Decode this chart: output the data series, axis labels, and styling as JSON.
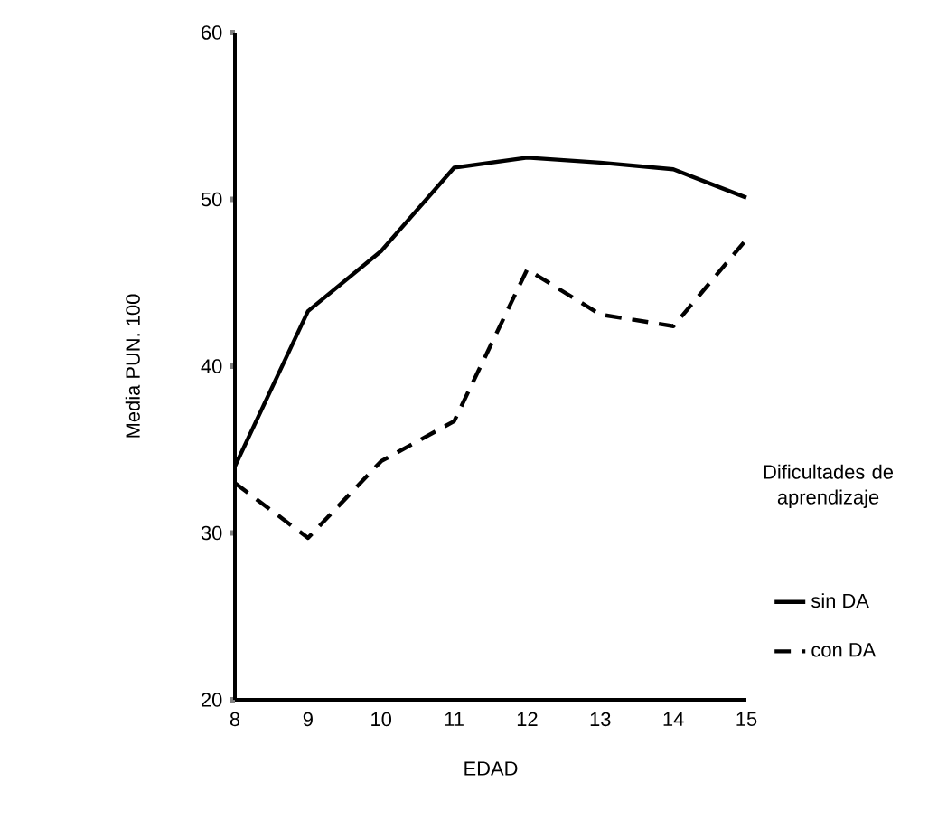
{
  "chart_data": {
    "type": "line",
    "xlabel": "EDAD",
    "ylabel": "Media PUN. 100",
    "legend_title": "Dificultades de aprendizaje",
    "legend": "right",
    "marker": "none",
    "x": [
      8,
      9,
      10,
      11,
      12,
      13,
      14,
      15
    ],
    "xlim": [
      8,
      15
    ],
    "xticks": [
      8,
      9,
      10,
      11,
      12,
      13,
      14,
      15
    ],
    "ylim": [
      20,
      60
    ],
    "yticks": [
      20,
      30,
      40,
      50,
      60
    ],
    "series": [
      {
        "name": "sin DA",
        "color": "#000000",
        "line_style": "solid",
        "values": [
          34,
          43.3,
          46.9,
          51.9,
          52.5,
          52.2,
          51.8,
          50.1
        ]
      },
      {
        "name": "con DA",
        "color": "#000000",
        "line_style": "dashed",
        "values": [
          33,
          29.7,
          34.3,
          36.7,
          45.8,
          43.1,
          42.4,
          47.6
        ]
      }
    ]
  }
}
